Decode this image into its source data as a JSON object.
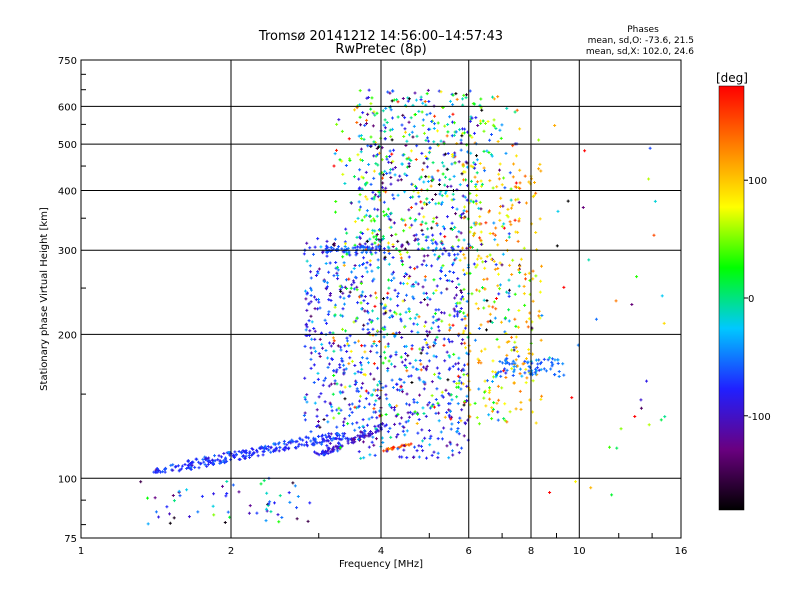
{
  "chart_data": {
    "type": "scatter",
    "title": "Tromsø 20141212 14:56:00–14:57:43",
    "subtitle": "RwPretec (8p)",
    "stats": {
      "heading": "Phases",
      "line_o": "mean, sd,O: -73.6, 21.5",
      "line_x": "mean, sd,X: 102.0, 24.6"
    },
    "xlabel": "Frequency [MHz]",
    "ylabel": "Stationary phase Virtual Height [km]",
    "xscale": "log",
    "yscale": "log",
    "xlim": [
      1,
      16
    ],
    "ylim": [
      75,
      750
    ],
    "xticks": [
      1,
      2,
      4,
      6,
      8,
      10,
      16
    ],
    "xtick_labels": [
      "1",
      "2",
      "4",
      "6",
      "8",
      "10",
      "16"
    ],
    "yticks": [
      75,
      100,
      200,
      300,
      400,
      500,
      600,
      750
    ],
    "ytick_labels": [
      "75",
      "100",
      "200",
      "300",
      "400",
      "500",
      "600",
      "750"
    ],
    "grid": true,
    "colorbar": {
      "label": "[deg]",
      "range": [
        -180,
        180
      ],
      "ticks": [
        -100,
        0,
        100
      ],
      "tick_labels": [
        "-100",
        "0",
        "100"
      ],
      "colors": [
        "#000000",
        "#6a0080",
        "#2020ff",
        "#00c8ff",
        "#00ff00",
        "#ffff00",
        "#ff8000",
        "#ff0000"
      ]
    },
    "point_groups": [
      {
        "description": "O-trace low",
        "x_range": [
          1.4,
          3.4
        ],
        "y_range": [
          103,
          124
        ],
        "phase_mean": -72,
        "phase_sd": 12,
        "count": 260,
        "curve": "rising"
      },
      {
        "description": "X-trace low",
        "x_range": [
          3.0,
          4.1
        ],
        "y_range": [
          112,
          130
        ],
        "phase_mean": -90,
        "phase_sd": 15,
        "count": 90,
        "curve": "rising"
      },
      {
        "description": "X-trace hot",
        "x_range": [
          4.0,
          4.6
        ],
        "y_range": [
          114,
          118
        ],
        "phase_mean": 140,
        "phase_sd": 20,
        "count": 25,
        "curve": "rising"
      },
      {
        "description": "cloud main",
        "x_range": [
          2.8,
          6.0
        ],
        "y_range": [
          110,
          320
        ],
        "phase_mean": -75,
        "phase_sd": 30,
        "count": 700
      },
      {
        "description": "cloud mixed",
        "x_range": [
          3.2,
          7.6
        ],
        "y_range": [
          130,
          640
        ],
        "phase_mean": 20,
        "phase_sd": 90,
        "count": 600
      },
      {
        "description": "cloud upper",
        "x_range": [
          3.6,
          6.4
        ],
        "y_range": [
          300,
          650
        ],
        "phase_mean": -40,
        "phase_sd": 70,
        "count": 350
      },
      {
        "description": "yellow high-freq",
        "x_range": [
          5.8,
          8.4
        ],
        "y_range": [
          130,
          460
        ],
        "phase_mean": 100,
        "phase_sd": 25,
        "count": 230
      },
      {
        "description": "cyan layer 300 km",
        "x_range": [
          3.1,
          4.0
        ],
        "y_range": [
          296,
          306
        ],
        "phase_mean": -60,
        "phase_sd": 10,
        "count": 55
      },
      {
        "description": "cyan layer 170 km",
        "x_range": [
          6.8,
          9.4
        ],
        "y_range": [
          163,
          178
        ],
        "phase_mean": -55,
        "phase_sd": 12,
        "count": 70
      },
      {
        "description": "low scatter",
        "x_range": [
          1.3,
          2.9
        ],
        "y_range": [
          80,
          100
        ],
        "phase_mean": -70,
        "phase_sd": 60,
        "count": 60
      },
      {
        "description": "sparse high freq",
        "x_range": [
          8.0,
          15.0
        ],
        "y_range": [
          90,
          560
        ],
        "phase_mean": 20,
        "phase_sd": 100,
        "count": 40
      }
    ]
  }
}
